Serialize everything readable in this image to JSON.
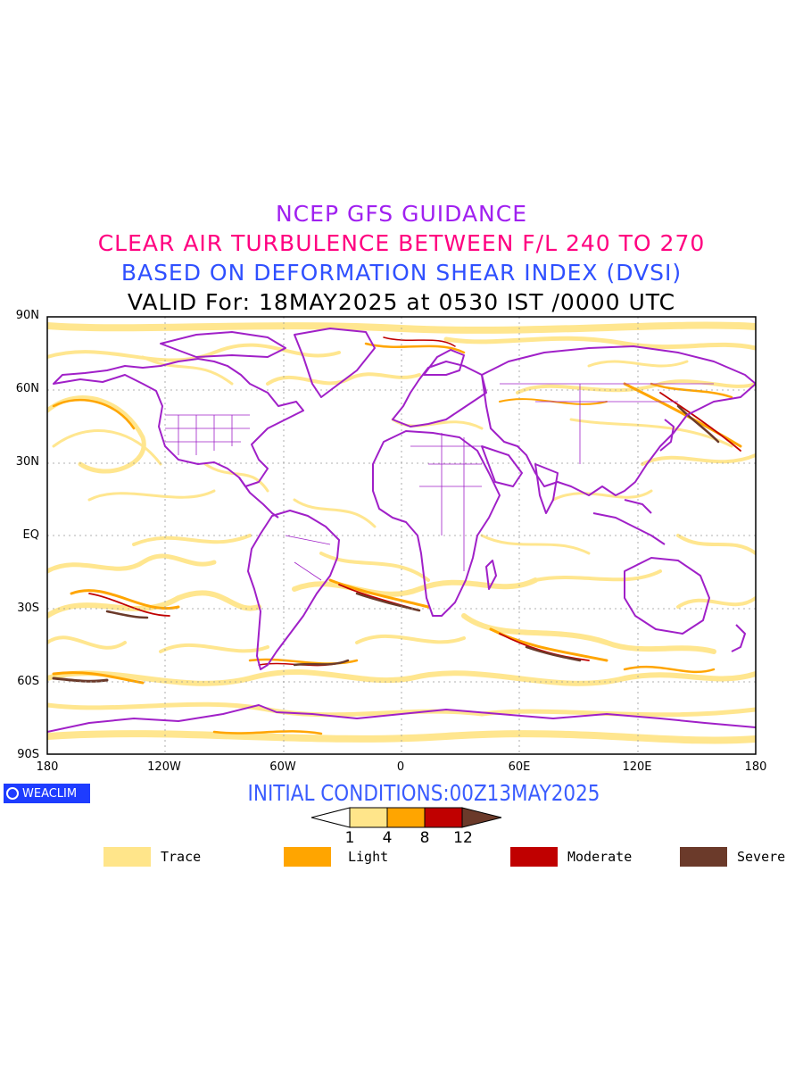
{
  "titles": {
    "line1": "NCEP GFS GUIDANCE",
    "line2": "CLEAR AIR TURBULENCE BETWEEN F/L 240 TO 270",
    "line3": "BASED ON DEFORMATION SHEAR INDEX (DVSI)",
    "line4": "VALID For: 18MAY2025 at 0530 IST /0000 UTC"
  },
  "axes": {
    "lat_labels": [
      "90N",
      "60N",
      "30N",
      "EQ",
      "30S",
      "60S",
      "90S"
    ],
    "lon_labels": [
      "180",
      "120W",
      "60W",
      "0",
      "60E",
      "120E",
      "180"
    ]
  },
  "logo": {
    "text": "WEACLIM"
  },
  "initial_conditions": "INITIAL CONDITIONS:00Z13MAY2025",
  "colorbar": {
    "ticks": [
      "1",
      "4",
      "8",
      "12"
    ],
    "colors": [
      "#ffe58a",
      "#ffa500",
      "#c00000",
      "#6b3a2a"
    ]
  },
  "legend": [
    {
      "label": "Trace",
      "color": "#ffe58a"
    },
    {
      "label": "Light",
      "color": "#ffa500"
    },
    {
      "label": "Moderate",
      "color": "#c00000"
    },
    {
      "label": "Severe",
      "color": "#6b3a2a"
    }
  ],
  "map_colors": {
    "trace": "#ffe58a",
    "light": "#ffa500",
    "moderate": "#c00000",
    "severe": "#6b3a2a",
    "coastline": "#a020c8"
  }
}
